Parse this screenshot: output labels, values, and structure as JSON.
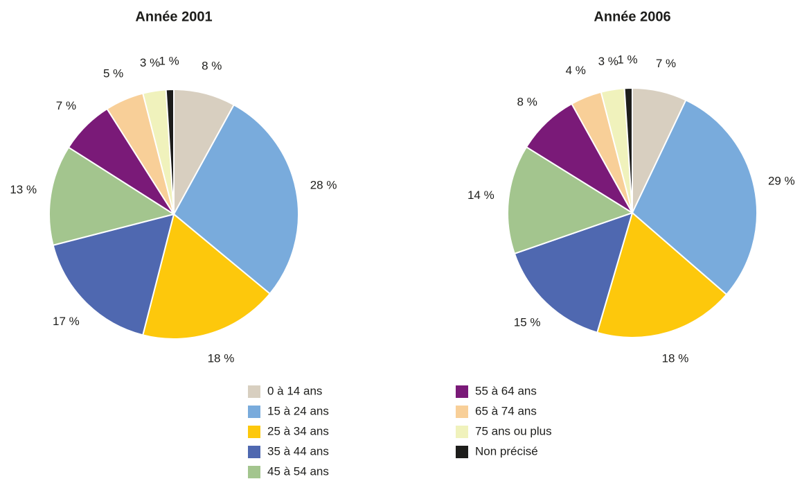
{
  "chart_data": [
    {
      "type": "pie",
      "title": "Année 2001",
      "categories": [
        "0 à 14 ans",
        "15 à 24 ans",
        "25 à 34 ans",
        "35 à 44 ans",
        "45 à 54 ans",
        "55 à 64 ans",
        "65 à 74 ans",
        "75 ans ou plus",
        "Non précisé"
      ],
      "values": [
        8,
        28,
        18,
        17,
        13,
        7,
        5,
        3,
        1
      ],
      "value_labels": [
        "8 %",
        "28 %",
        "18 %",
        "17 %",
        "13 %",
        "7 %",
        "5 %",
        "3 %",
        "1 %"
      ],
      "colors": [
        "#d8cfc0",
        "#79abdc",
        "#fdc80c",
        "#4f68b0",
        "#a3c58e",
        "#7a1a78",
        "#f8cf98",
        "#f0f2bc",
        "#1d1d1b"
      ]
    },
    {
      "type": "pie",
      "title": "Année 2006",
      "categories": [
        "0 à 14 ans",
        "15 à 24 ans",
        "25 à 34 ans",
        "35 à 44 ans",
        "45 à 54 ans",
        "55 à 64 ans",
        "65 à 74 ans",
        "75 ans ou plus",
        "Non précisé"
      ],
      "values": [
        7,
        29,
        18,
        15,
        14,
        8,
        4,
        3,
        1
      ],
      "value_labels": [
        "7 %",
        "29 %",
        "18 %",
        "15 %",
        "14 %",
        "8 %",
        "4 %",
        "3 %",
        "1 %"
      ],
      "colors": [
        "#d8cfc0",
        "#79abdc",
        "#fdc80c",
        "#4f68b0",
        "#a3c58e",
        "#7a1a78",
        "#f8cf98",
        "#f0f2bc",
        "#1d1d1b"
      ]
    }
  ]
}
